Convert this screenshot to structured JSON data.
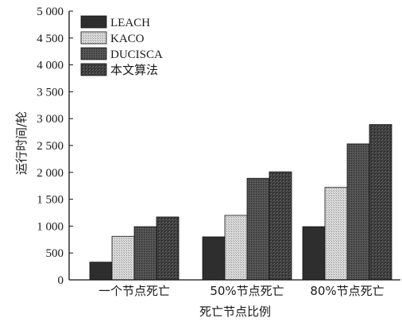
{
  "chart_data": {
    "type": "bar",
    "title": "",
    "xlabel": "死亡节点比例",
    "ylabel": "运行时间/轮",
    "categories": [
      "一个节点死亡",
      "50%节点死亡",
      "80%节点死亡"
    ],
    "series": [
      {
        "name": "LEACH",
        "values": [
          330,
          800,
          990
        ],
        "color": "#2e2e2e",
        "pattern": "dark-solid"
      },
      {
        "name": "KACO",
        "values": [
          810,
          1200,
          1720
        ],
        "color": "#d4d4d4",
        "pattern": "light-dotted"
      },
      {
        "name": "DUCISCA",
        "values": [
          990,
          1890,
          2530
        ],
        "color": "#4e4e4e",
        "pattern": "dark-dotted"
      },
      {
        "name": "本文算法",
        "values": [
          1170,
          2010,
          2890
        ],
        "color": "#363636",
        "pattern": "dark-speckled"
      }
    ],
    "ylim": [
      0,
      5000
    ],
    "yticks": [
      0,
      500,
      1000,
      1500,
      2000,
      2500,
      3000,
      3500,
      4000,
      4500,
      5000
    ],
    "ytick_labels": [
      "0",
      "500",
      "1 000",
      "1 500",
      "2 000",
      "2 500",
      "3 000",
      "3 500",
      "4 000",
      "4 500",
      "5 000"
    ],
    "legend_position": "top-left",
    "grid": false
  }
}
